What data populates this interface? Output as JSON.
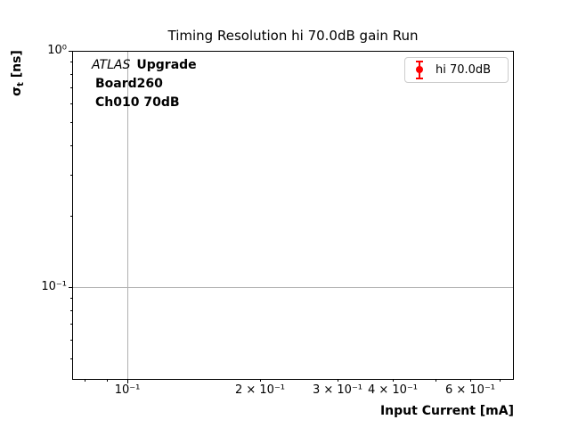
{
  "figure": {
    "title": "Timing Resolution hi 70.0dB gain Run",
    "annotation": {
      "experiment": "ATLAS",
      "experiment_suffix": "Upgrade",
      "board": "Board260",
      "channel": "Ch010 70dB"
    },
    "y_label_parts": {
      "sigma": "σ",
      "sub": "t",
      "units": " [ns]"
    },
    "legend": {
      "entries": [
        {
          "label": "hi 70.0dB",
          "marker": "errorbar-point",
          "color": "#ff0000"
        }
      ]
    }
  },
  "colors": {
    "marker": "#ff0000",
    "grid": "#b0b0b0",
    "axis": "#000000",
    "legend_border": "#cccccc",
    "background": "#ffffff"
  },
  "chart_data": {
    "type": "scatter",
    "subtype": "errorbar",
    "title": "Timing Resolution hi 70.0dB gain Run",
    "xlabel": "Input Current [mA]",
    "ylabel": "σₜ [ns]",
    "x_scale": "log",
    "y_scale": "log",
    "xlim": [
      0.075,
      0.75
    ],
    "ylim": [
      0.041,
      1.0
    ],
    "grid": "major",
    "legend_position": "upper right",
    "series": [
      {
        "name": "hi 70.0dB",
        "color": "#ff0000",
        "marker": "o",
        "x": [],
        "y": [],
        "yerr": []
      }
    ],
    "x_axis": {
      "label": "Input Current [mA]",
      "ticks": [
        {
          "value": 0.1,
          "label": "10⁻¹",
          "major": true
        },
        {
          "value": 0.2,
          "label": "2 × 10⁻¹",
          "major": false
        },
        {
          "value": 0.3,
          "label": "3 × 10⁻¹",
          "major": false
        },
        {
          "value": 0.4,
          "label": "4 × 10⁻¹",
          "major": false
        },
        {
          "value": 0.6,
          "label": "6 × 10⁻¹",
          "major": false
        },
        {
          "value": 0.08,
          "label": "",
          "major": false
        },
        {
          "value": 0.09,
          "label": "",
          "major": false
        },
        {
          "value": 0.5,
          "label": "",
          "major": false
        },
        {
          "value": 0.7,
          "label": "",
          "major": false
        }
      ]
    },
    "y_axis": {
      "label": "σₜ [ns]",
      "ticks": [
        {
          "value": 1.0,
          "label": "10⁰",
          "major": true
        },
        {
          "value": 0.1,
          "label": "10⁻¹",
          "major": true
        },
        {
          "value": 0.9,
          "label": "",
          "major": false
        },
        {
          "value": 0.8,
          "label": "",
          "major": false
        },
        {
          "value": 0.7,
          "label": "",
          "major": false
        },
        {
          "value": 0.6,
          "label": "",
          "major": false
        },
        {
          "value": 0.5,
          "label": "",
          "major": false
        },
        {
          "value": 0.4,
          "label": "",
          "major": false
        },
        {
          "value": 0.3,
          "label": "",
          "major": false
        },
        {
          "value": 0.2,
          "label": "",
          "major": false
        },
        {
          "value": 0.09,
          "label": "",
          "major": false
        },
        {
          "value": 0.08,
          "label": "",
          "major": false
        },
        {
          "value": 0.07,
          "label": "",
          "major": false
        },
        {
          "value": 0.06,
          "label": "",
          "major": false
        },
        {
          "value": 0.05,
          "label": "",
          "major": false
        }
      ]
    }
  }
}
